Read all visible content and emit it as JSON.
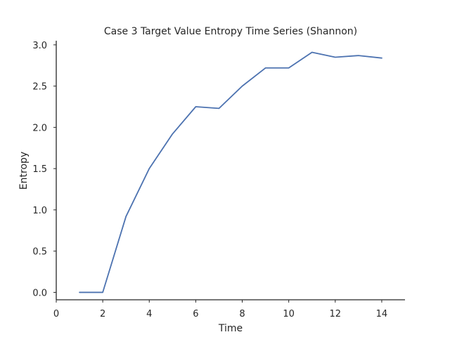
{
  "chart_data": {
    "type": "line",
    "title": "Case 3 Target Value Entropy Time Series (Shannon)",
    "xlabel": "Time",
    "ylabel": "Entropy",
    "xlim": [
      0,
      15
    ],
    "ylim": [
      -0.09,
      3.05
    ],
    "xticks": [
      0,
      2,
      4,
      6,
      8,
      10,
      12,
      14
    ],
    "yticks": [
      0.0,
      0.5,
      1.0,
      1.5,
      2.0,
      2.5,
      3.0
    ],
    "xtick_labels": [
      "0",
      "2",
      "4",
      "6",
      "8",
      "10",
      "12",
      "14"
    ],
    "ytick_labels": [
      "0.0",
      "0.5",
      "1.0",
      "1.5",
      "2.0",
      "2.5",
      "3.0"
    ],
    "grid": false,
    "series": [
      {
        "color": "#4c72b0",
        "x": [
          1,
          2,
          3,
          4,
          5,
          6,
          7,
          8,
          9,
          10,
          11,
          12,
          13,
          14
        ],
        "y": [
          0.0,
          0.0,
          0.92,
          1.5,
          1.92,
          2.25,
          2.23,
          2.5,
          2.72,
          2.72,
          2.91,
          2.85,
          2.87,
          2.84
        ]
      }
    ]
  }
}
